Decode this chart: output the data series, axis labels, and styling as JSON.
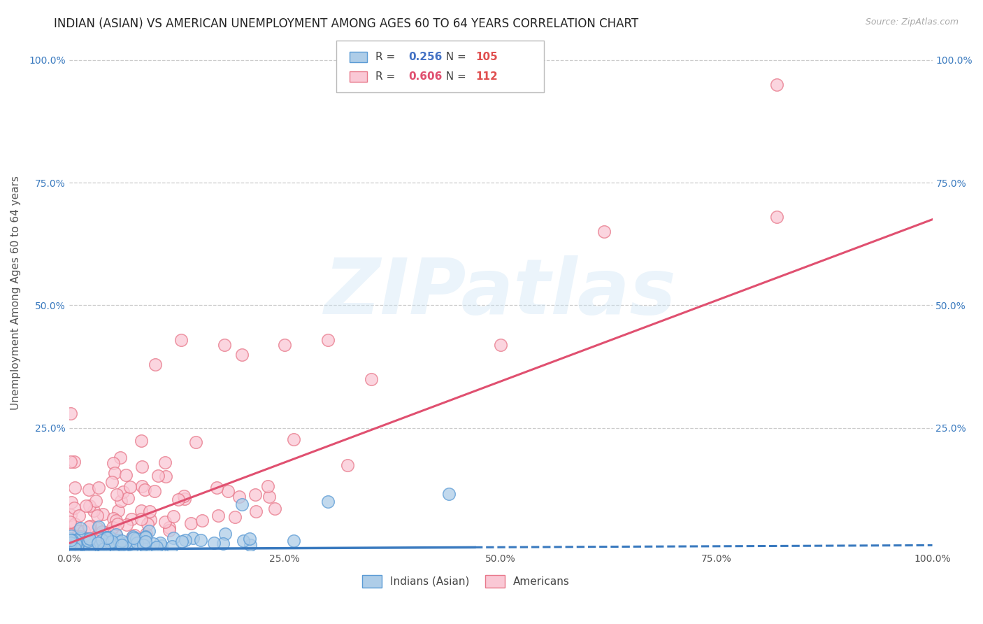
{
  "title": "INDIAN (ASIAN) VS AMERICAN UNEMPLOYMENT AMONG AGES 60 TO 64 YEARS CORRELATION CHART",
  "source": "Source: ZipAtlas.com",
  "ylabel": "Unemployment Among Ages 60 to 64 years",
  "xlim": [
    0.0,
    1.0
  ],
  "ylim": [
    0.0,
    1.05
  ],
  "x_ticks": [
    0.0,
    0.25,
    0.5,
    0.75,
    1.0
  ],
  "x_tick_labels": [
    "0.0%",
    "25.0%",
    "50.0%",
    "75.0%",
    "100.0%"
  ],
  "y_ticks": [
    0.0,
    0.25,
    0.5,
    0.75,
    1.0
  ],
  "y_tick_labels": [
    "",
    "25.0%",
    "50.0%",
    "75.0%",
    "100.0%"
  ],
  "series1_label": "Indians (Asian)",
  "series1_R": "0.256",
  "series1_N": "105",
  "series1_face_color": "#aecde8",
  "series1_edge_color": "#5b9bd5",
  "series1_trend_color": "#3a7abf",
  "series2_label": "Americans",
  "series2_R": "0.606",
  "series2_N": "112",
  "series2_face_color": "#fac8d5",
  "series2_edge_color": "#e8788a",
  "series2_trend_color": "#e05070",
  "watermark": "ZIPatlas",
  "background_color": "#ffffff",
  "grid_color": "#cccccc",
  "title_fontsize": 12,
  "axis_label_fontsize": 11,
  "tick_fontsize": 10,
  "seed": 42,
  "n1": 105,
  "n2": 112,
  "r1": 0.256,
  "r2": 0.606,
  "legend_R_color": "#4472c4",
  "legend_N_color": "#e05050"
}
